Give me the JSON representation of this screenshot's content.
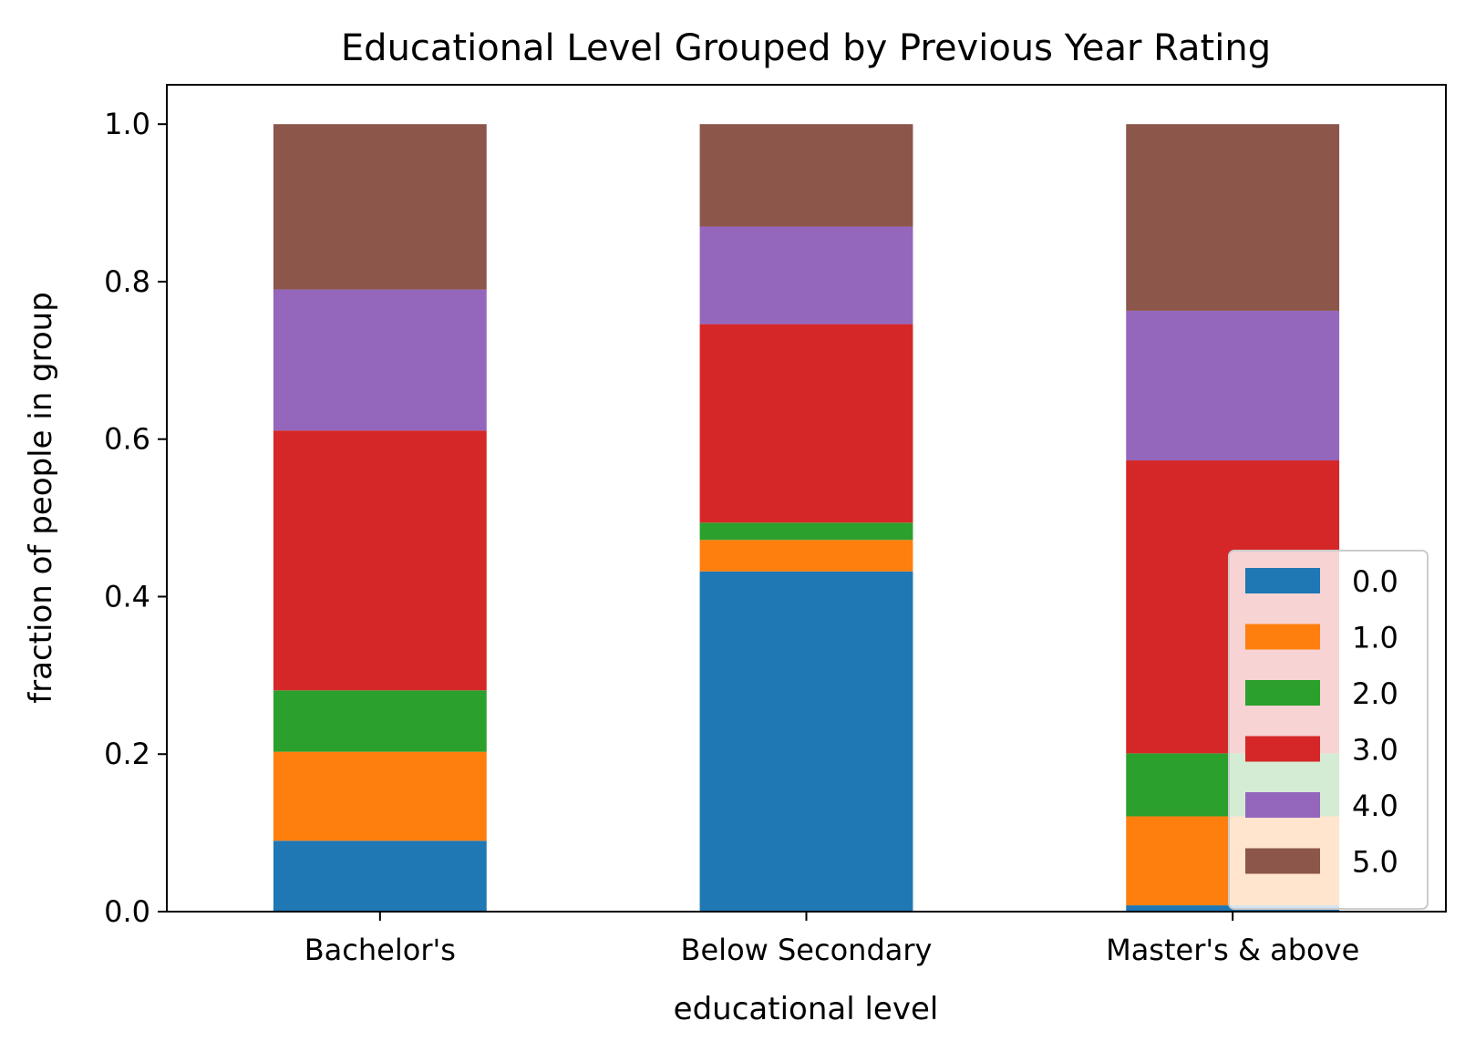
{
  "chart_data": {
    "type": "bar",
    "stacked": true,
    "title": "Educational Level Grouped by Previous Year Rating",
    "xlabel": "educational level",
    "ylabel": "fraction of people in group",
    "categories": [
      "Bachelor's",
      "Below Secondary",
      "Master's & above"
    ],
    "ylim": [
      0,
      1.05
    ],
    "yticks": [
      "0.0",
      "0.2",
      "0.4",
      "0.6",
      "0.8",
      "1.0"
    ],
    "grid": false,
    "legend_position": "lower-right",
    "series": [
      {
        "name": "0.0",
        "color": "#1f77b4",
        "values": [
          0.09,
          0.432,
          0.008
        ]
      },
      {
        "name": "1.0",
        "color": "#ff7f0e",
        "values": [
          0.113,
          0.04,
          0.113
        ]
      },
      {
        "name": "2.0",
        "color": "#2ca02c",
        "values": [
          0.078,
          0.022,
          0.08
        ]
      },
      {
        "name": "3.0",
        "color": "#d62728",
        "values": [
          0.33,
          0.252,
          0.372
        ]
      },
      {
        "name": "4.0",
        "color": "#9467bd",
        "values": [
          0.179,
          0.124,
          0.19
        ]
      },
      {
        "name": "5.0",
        "color": "#8c564b",
        "values": [
          0.21,
          0.13,
          0.237
        ]
      }
    ]
  }
}
